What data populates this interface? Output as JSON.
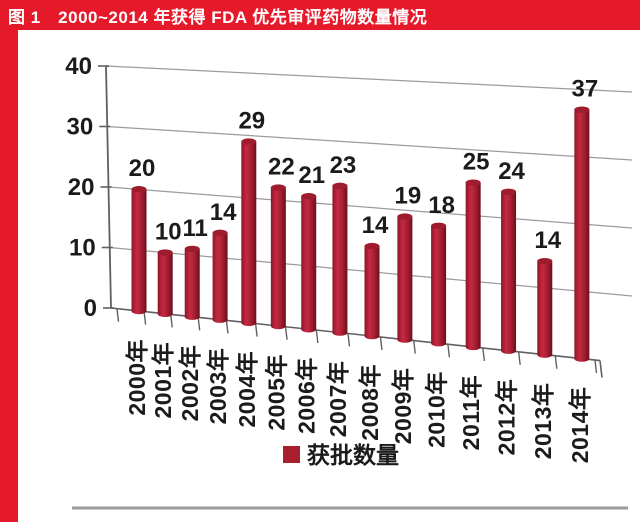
{
  "window": {
    "title": "图 1　2000~2014 年获得 FDA 优先审评药物数量情况"
  },
  "chart_data": {
    "type": "bar",
    "style": "3d-cylinder-perspective",
    "title": "2000~2014 年获得 FDA 优先审评药物数量情况",
    "categories": [
      "2000年",
      "2001年",
      "2002年",
      "2003年",
      "2004年",
      "2005年",
      "2006年",
      "2007年",
      "2008年",
      "2009年",
      "2010年",
      "2011年",
      "2012年",
      "2013年",
      "2014年"
    ],
    "values": [
      20,
      10,
      11,
      14,
      29,
      22,
      21,
      23,
      14,
      19,
      18,
      25,
      24,
      14,
      37
    ],
    "series": [
      {
        "name": "获批数量",
        "values": [
          20,
          10,
          11,
          14,
          29,
          22,
          21,
          23,
          14,
          19,
          18,
          25,
          24,
          14,
          37
        ]
      }
    ],
    "legend": "获批数量",
    "legend_position": "bottom",
    "xlabel": "",
    "ylabel": "",
    "ylim": [
      0,
      40
    ],
    "yticks": [
      0,
      10,
      20,
      30,
      40
    ],
    "grid": true,
    "colors": {
      "title_bar": "#e6192b",
      "accent_strip": "#e6192b",
      "bar_edge_dark": "#6e0f1c",
      "bar_dark": "#8f1626",
      "bar_light": "#c42a42",
      "bar_mid": "#ad2136",
      "bar_cap": "#9e1c2e",
      "legend_swatch": "#a81e2c",
      "label_text": "#1b1b1b",
      "grid_line": "#96969a",
      "axis_line": "#606064",
      "bottom_rule": "#9b9b9b"
    }
  }
}
